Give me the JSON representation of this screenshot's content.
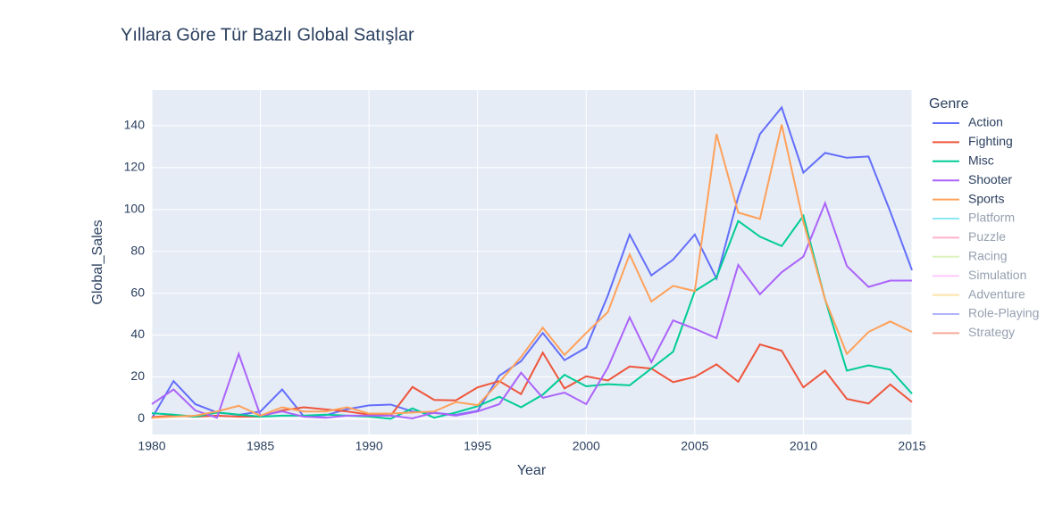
{
  "chart_data": {
    "type": "line",
    "title": "Yıllara Göre Tür Bazlı Global Satışlar",
    "x_label": "Year",
    "y_label": "Global_Sales",
    "legend_title": "Genre",
    "x": [
      1980,
      1981,
      1982,
      1983,
      1984,
      1985,
      1986,
      1987,
      1988,
      1989,
      1990,
      1991,
      1992,
      1993,
      1994,
      1995,
      1996,
      1997,
      1998,
      1999,
      2000,
      2001,
      2002,
      2003,
      2004,
      2005,
      2006,
      2007,
      2008,
      2009,
      2010,
      2011,
      2012,
      2013,
      2014,
      2015
    ],
    "xlim": [
      1980,
      2015
    ],
    "xticks": [
      1980,
      1985,
      1990,
      1995,
      2000,
      2005,
      2010,
      2015
    ],
    "ylim": [
      -7.5,
      157
    ],
    "yticks": [
      0,
      20,
      40,
      60,
      80,
      100,
      120,
      140
    ],
    "grid": true,
    "legend": "right",
    "series": [
      {
        "name": "Action",
        "color": "#636efa",
        "values": [
          0.3,
          18,
          7,
          3,
          1.9,
          3.5,
          14,
          1.1,
          1.7,
          4.6,
          6.4,
          6.8,
          3.5,
          2.8,
          1.9,
          3.8,
          20.6,
          27.5,
          41,
          28,
          34,
          59,
          88,
          68.5,
          76,
          88,
          67,
          106,
          136,
          148.7,
          117.6,
          127,
          124.7,
          125.3,
          99,
          71
        ]
      },
      {
        "name": "Fighting",
        "color": "#EF553B",
        "values": [
          0.8,
          1.5,
          1,
          1.5,
          1,
          1,
          4,
          5.5,
          4.5,
          3.5,
          2,
          1.5,
          15.2,
          9,
          8.8,
          15,
          18,
          11.8,
          31.6,
          14.5,
          20.3,
          18.3,
          25,
          24,
          17.5,
          20,
          26,
          17.7,
          35.5,
          32.5,
          15,
          23,
          9.5,
          7.3,
          16.4,
          8
        ]
      },
      {
        "name": "Misc",
        "color": "#00cc96",
        "values": [
          2.7,
          2,
          1,
          3,
          2,
          1,
          1.5,
          1.5,
          2,
          1.5,
          1,
          0,
          5,
          0.5,
          3,
          6,
          10.5,
          5.5,
          11.5,
          21,
          15.5,
          16.5,
          16,
          24,
          32,
          61,
          67.5,
          94.5,
          87,
          82.5,
          97,
          57,
          23,
          25.5,
          23.5,
          12
        ]
      },
      {
        "name": "Shooter",
        "color": "#ab63fa",
        "values": [
          7,
          14,
          4,
          0.5,
          31,
          1.5,
          3.5,
          1,
          0.5,
          1.5,
          1.5,
          1.5,
          0.2,
          3,
          1.5,
          3.5,
          7,
          22,
          10,
          12.5,
          7,
          24.5,
          48.5,
          27,
          47,
          43,
          38.5,
          73.5,
          59.5,
          70,
          77.5,
          103,
          73,
          63,
          66,
          66
        ]
      },
      {
        "name": "Sports",
        "color": "#FFA15A",
        "values": [
          0.5,
          1,
          1.5,
          3.5,
          6.2,
          1.5,
          5.5,
          3.5,
          3.5,
          5.5,
          2.5,
          2.5,
          3,
          3.5,
          8,
          6.5,
          17.5,
          29.5,
          43.5,
          30.5,
          41,
          51,
          78.5,
          56,
          63.5,
          61,
          136,
          98.5,
          95.5,
          140.5,
          94,
          57,
          31,
          41.5,
          46.5,
          41.5
        ]
      },
      {
        "name": "Platform",
        "color": "#19d3f3",
        "visible": "legendonly"
      },
      {
        "name": "Puzzle",
        "color": "#FF6692",
        "visible": "legendonly"
      },
      {
        "name": "Racing",
        "color": "#B6E880",
        "visible": "legendonly"
      },
      {
        "name": "Simulation",
        "color": "#FF97FF",
        "visible": "legendonly"
      },
      {
        "name": "Adventure",
        "color": "#FECB52",
        "visible": "legendonly"
      },
      {
        "name": "Role-Playing",
        "color": "#636efa",
        "visible": "legendonly"
      },
      {
        "name": "Strategy",
        "color": "#EF553B",
        "visible": "legendonly"
      }
    ]
  }
}
